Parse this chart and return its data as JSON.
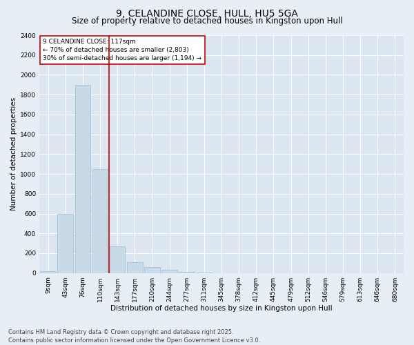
{
  "title": "9, CELANDINE CLOSE, HULL, HU5 5GA",
  "subtitle": "Size of property relative to detached houses in Kingston upon Hull",
  "xlabel": "Distribution of detached houses by size in Kingston upon Hull",
  "ylabel": "Number of detached properties",
  "footer": "Contains HM Land Registry data © Crown copyright and database right 2025.\nContains public sector information licensed under the Open Government Licence v3.0.",
  "bar_labels": [
    "9sqm",
    "43sqm",
    "76sqm",
    "110sqm",
    "143sqm",
    "177sqm",
    "210sqm",
    "244sqm",
    "277sqm",
    "311sqm",
    "345sqm",
    "378sqm",
    "412sqm",
    "445sqm",
    "479sqm",
    "512sqm",
    "546sqm",
    "579sqm",
    "613sqm",
    "646sqm",
    "680sqm"
  ],
  "bar_values": [
    20,
    600,
    1900,
    1050,
    270,
    110,
    60,
    35,
    15,
    5,
    0,
    0,
    0,
    0,
    0,
    0,
    0,
    0,
    0,
    0,
    0
  ],
  "bar_color": "#c8d9e8",
  "bar_edge_color": "#a0bdd0",
  "vline_color": "#cc0000",
  "annotation_text": "9 CELANDINE CLOSE: 117sqm\n← 70% of detached houses are smaller (2,803)\n30% of semi-detached houses are larger (1,194) →",
  "annotation_box_facecolor": "white",
  "annotation_box_edgecolor": "#cc0000",
  "ylim": [
    0,
    2400
  ],
  "yticks": [
    0,
    200,
    400,
    600,
    800,
    1000,
    1200,
    1400,
    1600,
    1800,
    2000,
    2200,
    2400
  ],
  "figure_facecolor": "#e8eef5",
  "axes_facecolor": "#dce6f0",
  "grid_color": "white",
  "title_fontsize": 10,
  "subtitle_fontsize": 8.5,
  "axis_label_fontsize": 7.5,
  "tick_fontsize": 6.5,
  "annotation_fontsize": 6.5,
  "footer_fontsize": 6.0,
  "vline_index": 3
}
